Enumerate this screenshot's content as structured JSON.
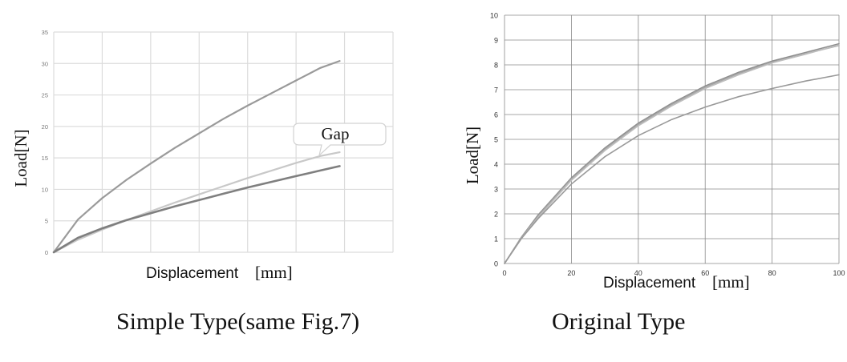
{
  "figure": {
    "captions": [
      "Simple Type(same Fig.7)",
      "Original Type"
    ]
  },
  "chart_data": [
    {
      "type": "line",
      "title": "",
      "xlabel": "Displacement",
      "xunit": "[mm]",
      "ylabel": "Load[N]",
      "ylim": [
        0,
        35
      ],
      "yticks": [
        "0",
        "5",
        "10",
        "15",
        "20",
        "25",
        "30",
        "35"
      ],
      "xticks_visible": false,
      "xlim": [
        0,
        7
      ],
      "grid": true,
      "annotation": {
        "text": "Gap"
      },
      "colors": [
        "#9a9a9a",
        "#c8c8c8",
        "#7f7f7f"
      ],
      "series": [
        {
          "x": [
            0,
            0.5,
            1,
            1.5,
            2,
            2.5,
            3,
            3.5,
            4,
            4.5,
            5,
            5.5,
            5.9
          ],
          "values": [
            0,
            5.2,
            8.6,
            11.5,
            14.1,
            16.6,
            18.9,
            21.2,
            23.3,
            25.3,
            27.3,
            29.3,
            30.4
          ]
        },
        {
          "x": [
            0,
            0.5,
            1,
            1.5,
            2,
            2.5,
            3,
            3.5,
            4,
            4.5,
            5,
            5.5,
            5.9
          ],
          "values": [
            0,
            2.0,
            3.6,
            5.1,
            6.5,
            7.9,
            9.2,
            10.5,
            11.8,
            13.0,
            14.2,
            15.3,
            15.9
          ]
        },
        {
          "x": [
            0,
            0.5,
            1,
            1.5,
            2,
            2.5,
            3,
            3.5,
            4,
            4.5,
            5,
            5.5,
            5.9
          ],
          "values": [
            0,
            2.3,
            3.8,
            5.1,
            6.2,
            7.3,
            8.3,
            9.3,
            10.3,
            11.2,
            12.1,
            13.0,
            13.7
          ]
        }
      ]
    },
    {
      "type": "line",
      "title": "",
      "xlabel": "Displacement",
      "xunit": "[mm]",
      "ylabel": "Load[N]",
      "xlim": [
        0,
        100
      ],
      "ylim": [
        0,
        10
      ],
      "xticks": [
        "0",
        "20",
        "40",
        "60",
        "80",
        "100"
      ],
      "yticks": [
        "0",
        "1",
        "2",
        "3",
        "4",
        "5",
        "6",
        "7",
        "8",
        "9",
        "10"
      ],
      "grid": true,
      "colors": [
        "#8f8f8f",
        "#a6a6a6",
        "#bdbdbd",
        "#999999"
      ],
      "series": [
        {
          "x": [
            0,
            5,
            10,
            20,
            30,
            40,
            50,
            60,
            70,
            80,
            90,
            100
          ],
          "values": [
            0,
            1.05,
            1.95,
            3.45,
            4.65,
            5.65,
            6.45,
            7.15,
            7.7,
            8.15,
            8.5,
            8.85
          ]
        },
        {
          "x": [
            0,
            5,
            10,
            20,
            30,
            40,
            50,
            60,
            70,
            80,
            90,
            100
          ],
          "values": [
            0,
            1.02,
            1.9,
            3.4,
            4.6,
            5.6,
            6.4,
            7.1,
            7.65,
            8.1,
            8.45,
            8.78
          ]
        },
        {
          "x": [
            0,
            5,
            10,
            20,
            30,
            40,
            50,
            60,
            70,
            80,
            90,
            100
          ],
          "values": [
            0,
            1.0,
            1.85,
            3.35,
            4.55,
            5.55,
            6.35,
            7.05,
            7.6,
            8.08,
            8.43,
            8.8
          ]
        },
        {
          "x": [
            0,
            5,
            10,
            20,
            30,
            40,
            50,
            60,
            70,
            80,
            90,
            100
          ],
          "values": [
            0,
            1.0,
            1.8,
            3.2,
            4.3,
            5.15,
            5.8,
            6.3,
            6.72,
            7.05,
            7.35,
            7.6
          ]
        }
      ]
    }
  ]
}
